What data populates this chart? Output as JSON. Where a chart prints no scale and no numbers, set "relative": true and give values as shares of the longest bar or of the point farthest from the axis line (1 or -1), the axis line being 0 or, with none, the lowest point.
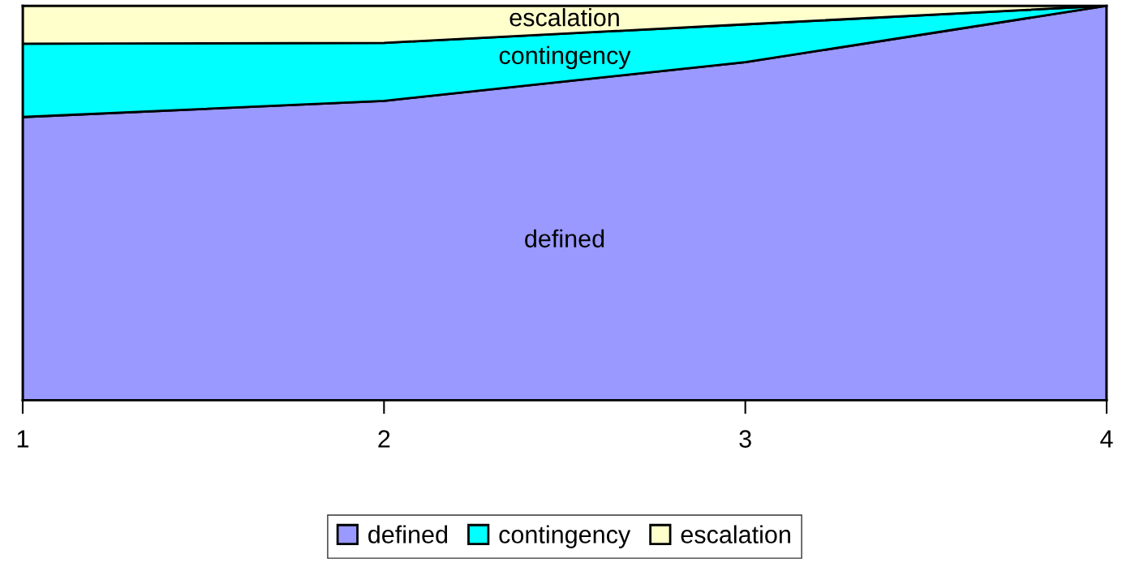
{
  "chart_data": {
    "type": "area",
    "stacked": true,
    "relative": true,
    "x": [
      1,
      2,
      3,
      4
    ],
    "xlim": [
      1,
      4
    ],
    "xticks": [
      1,
      2,
      3,
      4
    ],
    "series": [
      {
        "name": "defined",
        "color": "#9999ff",
        "values": [
          0.718,
          0.759,
          0.857,
          1.0
        ]
      },
      {
        "name": "contingency",
        "color": "#00ffff",
        "values": [
          0.186,
          0.147,
          0.096,
          0.0
        ]
      },
      {
        "name": "escalation",
        "color": "#ffffcc",
        "values": [
          0.096,
          0.094,
          0.047,
          0.0
        ]
      }
    ],
    "legend": "bottom",
    "grid": false
  }
}
